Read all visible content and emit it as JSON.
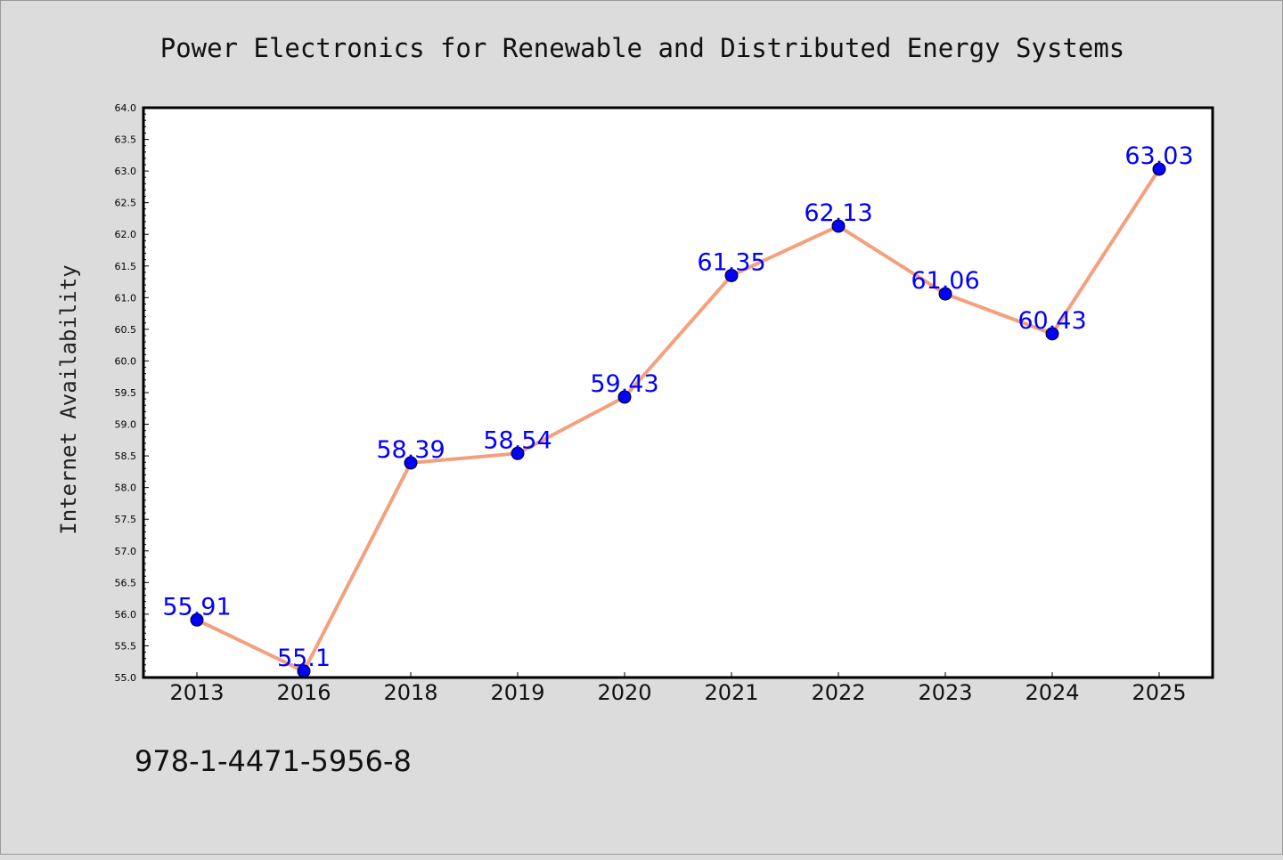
{
  "chart_data": {
    "type": "line",
    "title": "Power Electronics for Renewable and Distributed Energy Systems",
    "xlabel": "",
    "ylabel": "Internet Availability",
    "categories": [
      "2013",
      "2016",
      "2018",
      "2019",
      "2020",
      "2021",
      "2022",
      "2023",
      "2024",
      "2025"
    ],
    "series": [
      {
        "values": [
          55.91,
          55.1,
          58.39,
          58.54,
          59.43,
          61.35,
          62.13,
          61.06,
          60.43,
          63.03
        ],
        "data_labels": [
          "55.91",
          "55.1",
          "58.39",
          "58.54",
          "59.43",
          "61.35",
          "62.13",
          "61.06",
          "60.43",
          "63.03"
        ],
        "line_color": "#f4a07e",
        "marker_color": "#0000ff"
      }
    ],
    "ylim": [
      55.0,
      64.0
    ],
    "yticks": [
      "55.0",
      "55.5",
      "56.0",
      "56.5",
      "57.0",
      "57.5",
      "58.0",
      "58.5",
      "59.0",
      "59.5",
      "60.0",
      "60.5",
      "61.0",
      "61.5",
      "62.0",
      "62.5",
      "63.0",
      "63.5",
      "64.0"
    ],
    "grid": false,
    "label_color": "#0000ff"
  },
  "footer_text": "978-1-4471-5956-8"
}
